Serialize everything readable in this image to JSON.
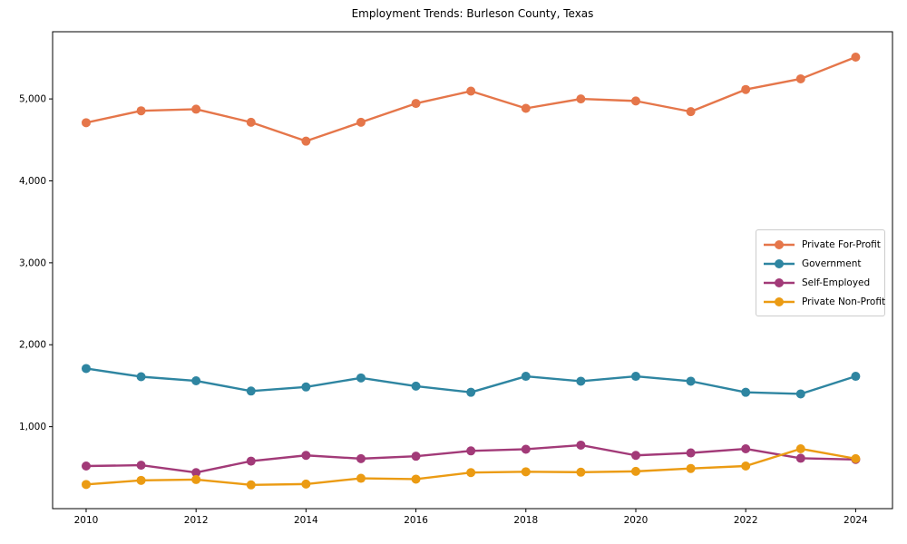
{
  "chart_data": {
    "type": "line",
    "title": "Employment Trends: Burleson County, Texas",
    "xlabel": "",
    "ylabel": "",
    "grid": false,
    "legend_position": "center right",
    "marker": "circle",
    "x": [
      2010,
      2011,
      2012,
      2013,
      2014,
      2015,
      2016,
      2017,
      2018,
      2019,
      2020,
      2021,
      2022,
      2023,
      2024
    ],
    "xticks": [
      2010,
      2012,
      2014,
      2016,
      2018,
      2020,
      2022,
      2024
    ],
    "xtick_labels": [
      "2010",
      "2012",
      "2014",
      "2016",
      "2018",
      "2020",
      "2022",
      "2024"
    ],
    "yticks": [
      1000,
      2000,
      3000,
      4000,
      5000
    ],
    "ytick_labels": [
      "1,000",
      "2,000",
      "3,000",
      "4,000",
      "5,000"
    ],
    "xlim": [
      2009.39,
      2024.67
    ],
    "ylim": [
      0,
      5820
    ],
    "series": [
      {
        "name": "Private For-Profit",
        "color": "#e5764a",
        "values": [
          4710,
          4855,
          4875,
          4715,
          4485,
          4715,
          4945,
          5095,
          4885,
          5000,
          4975,
          4845,
          5115,
          5245,
          5510
        ]
      },
      {
        "name": "Government",
        "color": "#2e85a1",
        "values": [
          1710,
          1610,
          1560,
          1435,
          1485,
          1595,
          1495,
          1420,
          1615,
          1555,
          1615,
          1555,
          1420,
          1400,
          1615
        ]
      },
      {
        "name": "Self-Employed",
        "color": "#a23a78",
        "values": [
          520,
          530,
          440,
          580,
          650,
          610,
          640,
          705,
          725,
          775,
          650,
          680,
          730,
          615,
          600
        ]
      },
      {
        "name": "Private Non-Profit",
        "color": "#eb9b13",
        "values": [
          295,
          345,
          355,
          290,
          300,
          370,
          360,
          440,
          450,
          445,
          455,
          490,
          520,
          730,
          610
        ]
      }
    ],
    "axis_color": "#000000",
    "tick_font_size": 10.5
  }
}
